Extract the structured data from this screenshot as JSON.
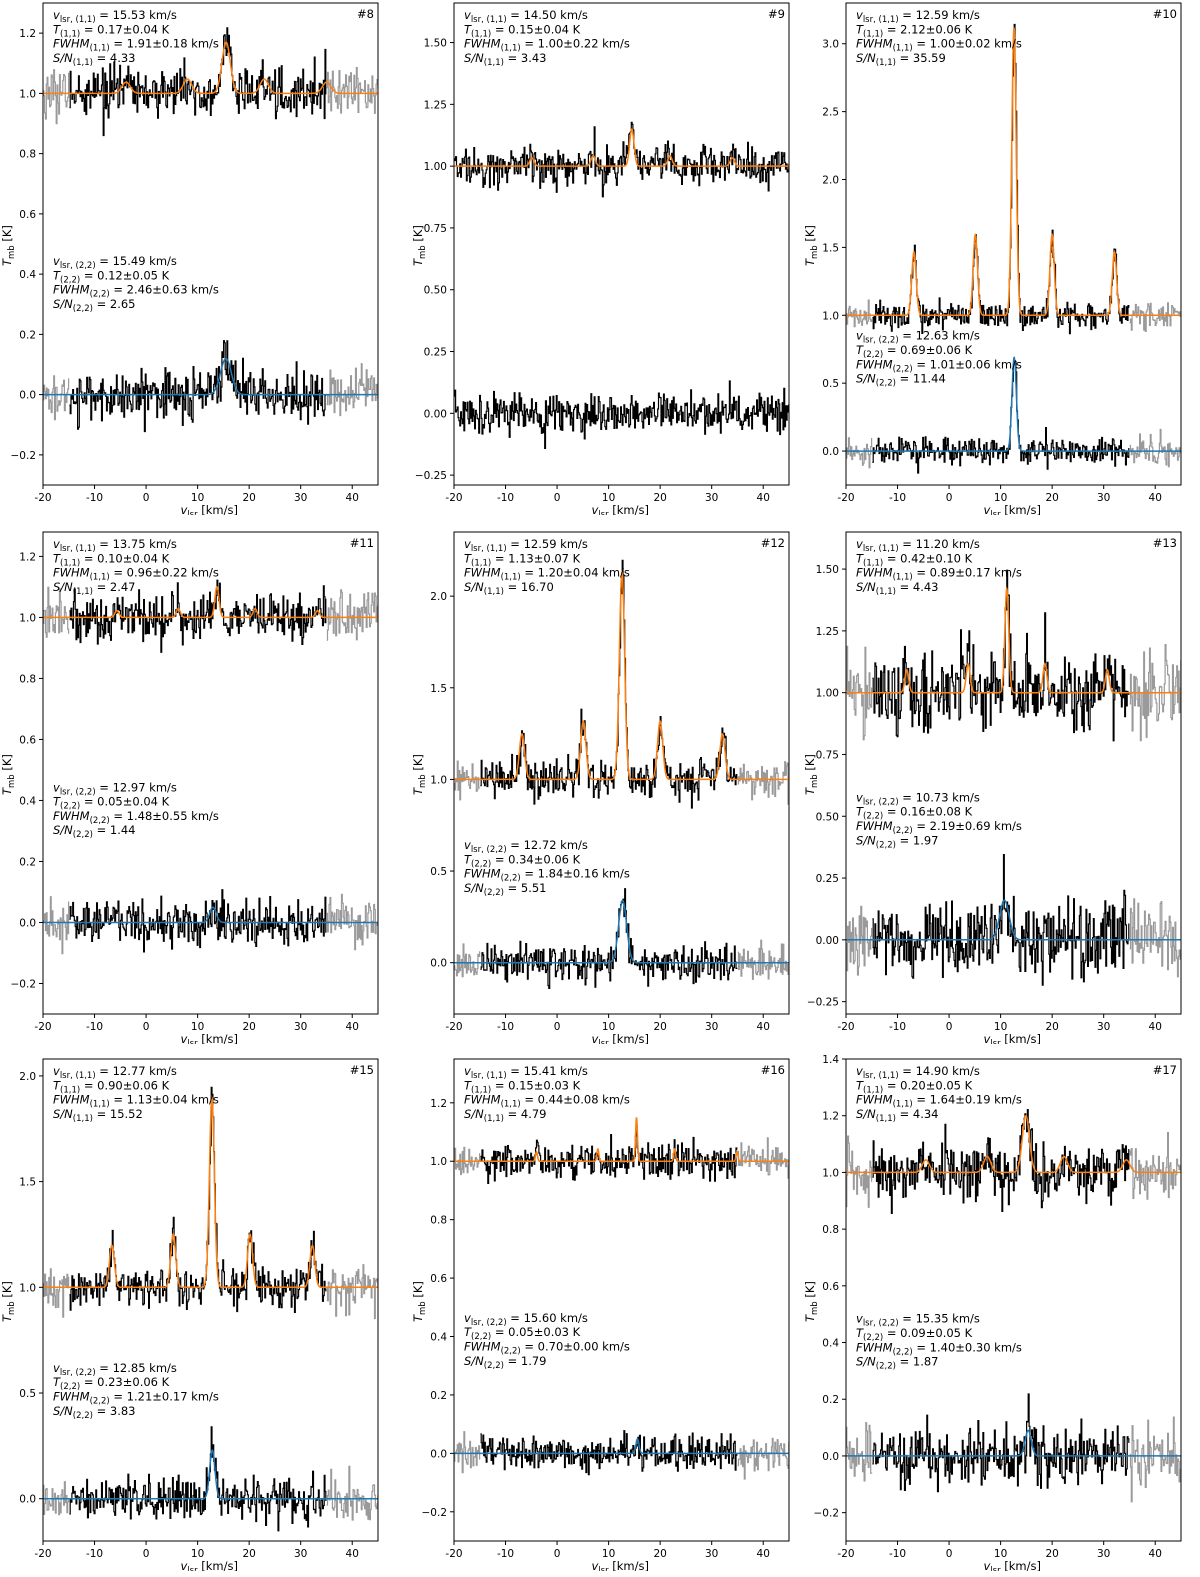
{
  "figure": {
    "xlabel_main": "v",
    "xlabel_sub": "lsr",
    "xlabel_unit": " [km/s]",
    "ylabel_main": "T",
    "ylabel_sub": "mb",
    "ylabel_unit": " [K]"
  },
  "colors": {
    "data": "#000000",
    "masked": "#9a9a9a",
    "fit11": "#ff7f0e",
    "fit22": "#1f77b4",
    "frame": "#000000"
  },
  "chart_data": [
    {
      "type": "line",
      "id": "#8",
      "xlim": [
        -20,
        45
      ],
      "ylim": [
        -0.3,
        1.3
      ],
      "xticks": [
        -20,
        -10,
        0,
        10,
        20,
        30,
        40
      ],
      "yticks": [
        -0.2,
        0.0,
        0.2,
        0.4,
        0.6,
        0.8,
        1.0,
        1.2
      ],
      "ytick_labels": [
        "−0.2",
        "0.0",
        "0.2",
        "0.4",
        "0.6",
        "0.8",
        "1.0",
        "1.2"
      ],
      "data_range": [
        -15,
        35
      ],
      "noise11": 0.04,
      "noise22": 0.04,
      "offset11": 1.0,
      "line11": {
        "v": 15.53,
        "T": 0.17,
        "fwhm": 1.91,
        "hyperfine": true
      },
      "line22": {
        "v": 15.49,
        "T": 0.12,
        "fwhm": 2.46
      },
      "labels11": [
        "= 15.53 km/s",
        "= 0.17±0.04 K",
        "= 1.91±0.18 km/s",
        "= 4.33"
      ],
      "labels22": [
        "= 15.49 km/s",
        "= 0.12±0.05 K",
        "= 2.46±0.63 km/s",
        "= 2.65"
      ],
      "anno22_y": 0.43
    },
    {
      "type": "line",
      "id": "#9",
      "xlim": [
        -20,
        45
      ],
      "ylim": [
        -0.29,
        1.66
      ],
      "xticks": [
        -20,
        -10,
        0,
        10,
        20,
        30,
        40
      ],
      "yticks": [
        -0.25,
        0.0,
        0.25,
        0.5,
        0.75,
        1.0,
        1.25,
        1.5
      ],
      "ytick_labels": [
        "−0.25",
        "0.00",
        "0.25",
        "0.50",
        "0.75",
        "1.00",
        "1.25",
        "1.50"
      ],
      "data_range": [
        -20,
        45
      ],
      "noise11": 0.04,
      "noise22": 0.04,
      "offset11": 1.0,
      "line11": {
        "v": 14.5,
        "T": 0.15,
        "fwhm": 1.0,
        "hyperfine": true
      },
      "line22": null,
      "labels11": [
        "= 14.50 km/s",
        "= 0.15±0.04 K",
        "= 1.00±0.22 km/s",
        "= 3.43"
      ],
      "labels22": null,
      "anno22_y": null
    },
    {
      "type": "line",
      "id": "#10",
      "xlim": [
        -20,
        45
      ],
      "ylim": [
        -0.25,
        3.3
      ],
      "xticks": [
        -20,
        -10,
        0,
        10,
        20,
        30,
        40
      ],
      "yticks": [
        0.0,
        0.5,
        1.0,
        1.5,
        2.0,
        2.5,
        3.0
      ],
      "ytick_labels": [
        "0.0",
        "0.5",
        "1.0",
        "1.5",
        "2.0",
        "2.5",
        "3.0"
      ],
      "data_range": [
        -15,
        35
      ],
      "noise11": 0.05,
      "noise22": 0.05,
      "offset11": 1.0,
      "line11": {
        "v": 12.59,
        "T": 2.12,
        "fwhm": 1.0,
        "hyperfine": true
      },
      "line22": {
        "v": 12.63,
        "T": 0.69,
        "fwhm": 1.01
      },
      "labels11": [
        "= 12.59 km/s",
        "= 2.12±0.06 K",
        "= 1.00±0.02 km/s",
        "= 35.59"
      ],
      "labels22": [
        "= 12.63 km/s",
        "= 0.69±0.06 K",
        "= 1.01±0.06 km/s",
        "= 11.44"
      ],
      "anno22_y": 0.82
    },
    {
      "type": "line",
      "id": "#11",
      "xlim": [
        -20,
        45
      ],
      "ylim": [
        -0.3,
        1.28
      ],
      "xticks": [
        -20,
        -10,
        0,
        10,
        20,
        30,
        40
      ],
      "yticks": [
        -0.2,
        0.0,
        0.2,
        0.4,
        0.6,
        0.8,
        1.0,
        1.2
      ],
      "ytick_labels": [
        "−0.2",
        "0.0",
        "0.2",
        "0.4",
        "0.6",
        "0.8",
        "1.0",
        "1.2"
      ],
      "data_range": [
        -15,
        35
      ],
      "noise11": 0.04,
      "noise22": 0.04,
      "offset11": 1.0,
      "line11": {
        "v": 13.75,
        "T": 0.1,
        "fwhm": 0.96,
        "hyperfine": true
      },
      "line22": {
        "v": 12.97,
        "T": 0.05,
        "fwhm": 1.48
      },
      "labels11": [
        "= 13.75 km/s",
        "= 0.10±0.04 K",
        "= 0.96±0.22 km/s",
        "= 2.47"
      ],
      "labels22": [
        "= 12.97 km/s",
        "= 0.05±0.04 K",
        "= 1.48±0.55 km/s",
        "= 1.44"
      ],
      "anno22_y": 0.43
    },
    {
      "type": "line",
      "id": "#12",
      "xlim": [
        -20,
        45
      ],
      "ylim": [
        -0.28,
        2.35
      ],
      "xticks": [
        -20,
        -10,
        0,
        10,
        20,
        30,
        40
      ],
      "yticks": [
        0.0,
        0.5,
        1.0,
        1.5,
        2.0
      ],
      "ytick_labels": [
        "0.0",
        "0.5",
        "1.0",
        "1.5",
        "2.0"
      ],
      "data_range": [
        -15,
        35
      ],
      "noise11": 0.05,
      "noise22": 0.05,
      "offset11": 1.0,
      "line11": {
        "v": 12.59,
        "T": 1.13,
        "fwhm": 1.2,
        "hyperfine": true
      },
      "line22": {
        "v": 12.72,
        "T": 0.34,
        "fwhm": 1.84
      },
      "labels11": [
        "= 12.59 km/s",
        "= 1.13±0.07 K",
        "= 1.20±0.04 km/s",
        "= 16.70"
      ],
      "labels22": [
        "= 12.72 km/s",
        "= 0.34±0.06 K",
        "= 1.84±0.16 km/s",
        "= 5.51"
      ],
      "anno22_y": 0.62
    },
    {
      "type": "line",
      "id": "#13",
      "xlim": [
        -20,
        45
      ],
      "ylim": [
        -0.3,
        1.65
      ],
      "xticks": [
        -20,
        -10,
        0,
        10,
        20,
        30,
        40
      ],
      "yticks": [
        -0.25,
        0.0,
        0.25,
        0.5,
        0.75,
        1.0,
        1.25,
        1.5
      ],
      "ytick_labels": [
        "−0.25",
        "0.00",
        "0.25",
        "0.50",
        "0.75",
        "1.00",
        "1.25",
        "1.50"
      ],
      "data_range": [
        -15,
        35
      ],
      "noise11": 0.08,
      "noise22": 0.08,
      "offset11": 1.0,
      "line11": {
        "v": 11.2,
        "T": 0.42,
        "fwhm": 0.89,
        "hyperfine": true
      },
      "line22": {
        "v": 10.73,
        "T": 0.16,
        "fwhm": 2.19
      },
      "labels11": [
        "= 11.20 km/s",
        "= 0.42±0.10 K",
        "= 0.89±0.17 km/s",
        "= 4.43"
      ],
      "labels22": [
        "= 10.73 km/s",
        "= 0.16±0.08 K",
        "= 2.19±0.69 km/s",
        "= 1.97"
      ],
      "anno22_y": 0.56
    },
    {
      "type": "line",
      "id": "#15",
      "xlim": [
        -20,
        45
      ],
      "ylim": [
        -0.2,
        2.08
      ],
      "xticks": [
        -20,
        -10,
        0,
        10,
        20,
        30,
        40
      ],
      "yticks": [
        0.0,
        0.5,
        1.0,
        1.5,
        2.0
      ],
      "ytick_labels": [
        "0.0",
        "0.5",
        "1.0",
        "1.5",
        "2.0"
      ],
      "data_range": [
        -15,
        35
      ],
      "noise11": 0.05,
      "noise22": 0.05,
      "offset11": 1.0,
      "line11": {
        "v": 12.77,
        "T": 0.9,
        "fwhm": 1.13,
        "hyperfine": true
      },
      "line22": {
        "v": 12.85,
        "T": 0.23,
        "fwhm": 1.21
      },
      "labels11": [
        "= 12.77 km/s",
        "= 0.90±0.06 K",
        "= 1.13±0.04 km/s",
        "= 15.52"
      ],
      "labels22": [
        "= 12.85 km/s",
        "= 0.23±0.06 K",
        "= 1.21±0.17 km/s",
        "= 3.83"
      ],
      "anno22_y": 0.6
    },
    {
      "type": "line",
      "id": "#16",
      "xlim": [
        -20,
        45
      ],
      "ylim": [
        -0.3,
        1.35
      ],
      "xticks": [
        -20,
        -10,
        0,
        10,
        20,
        30,
        40
      ],
      "yticks": [
        -0.2,
        0.0,
        0.2,
        0.4,
        0.6,
        0.8,
        1.0,
        1.2
      ],
      "ytick_labels": [
        "−0.2",
        "0.0",
        "0.2",
        "0.4",
        "0.6",
        "0.8",
        "1.0",
        "1.2"
      ],
      "data_range": [
        -15,
        35
      ],
      "noise11": 0.03,
      "noise22": 0.03,
      "offset11": 1.0,
      "line11": {
        "v": 15.41,
        "T": 0.15,
        "fwhm": 0.44,
        "hyperfine": true
      },
      "line22": {
        "v": 15.6,
        "T": 0.05,
        "fwhm": 0.7
      },
      "labels11": [
        "= 15.41 km/s",
        "= 0.15±0.03 K",
        "= 0.44±0.08 km/s",
        "= 4.79"
      ],
      "labels22": [
        "= 15.60 km/s",
        "= 0.05±0.03 K",
        "= 0.70±0.00 km/s",
        "= 1.79"
      ],
      "anno22_y": 0.45
    },
    {
      "type": "line",
      "id": "#17",
      "xlim": [
        -20,
        45
      ],
      "ylim": [
        -0.3,
        1.4
      ],
      "xticks": [
        -20,
        -10,
        0,
        10,
        20,
        30,
        40
      ],
      "yticks": [
        -0.2,
        0.0,
        0.2,
        0.4,
        0.6,
        0.8,
        1.0,
        1.2,
        1.4
      ],
      "ytick_labels": [
        "−0.2",
        "0.0",
        "0.2",
        "0.4",
        "0.6",
        "0.8",
        "1.0",
        "1.2",
        "1.4"
      ],
      "data_range": [
        -15,
        35
      ],
      "noise11": 0.05,
      "noise22": 0.05,
      "offset11": 1.0,
      "line11": {
        "v": 14.9,
        "T": 0.2,
        "fwhm": 1.64,
        "hyperfine": true
      },
      "line22": {
        "v": 15.35,
        "T": 0.09,
        "fwhm": 1.4
      },
      "labels11": [
        "= 14.90 km/s",
        "= 0.20±0.05 K",
        "= 1.64±0.19 km/s",
        "= 4.34"
      ],
      "labels22": [
        "= 15.35 km/s",
        "= 0.09±0.05 K",
        "= 1.40±0.30 km/s",
        "= 1.87"
      ],
      "anno22_y": 0.47
    }
  ]
}
